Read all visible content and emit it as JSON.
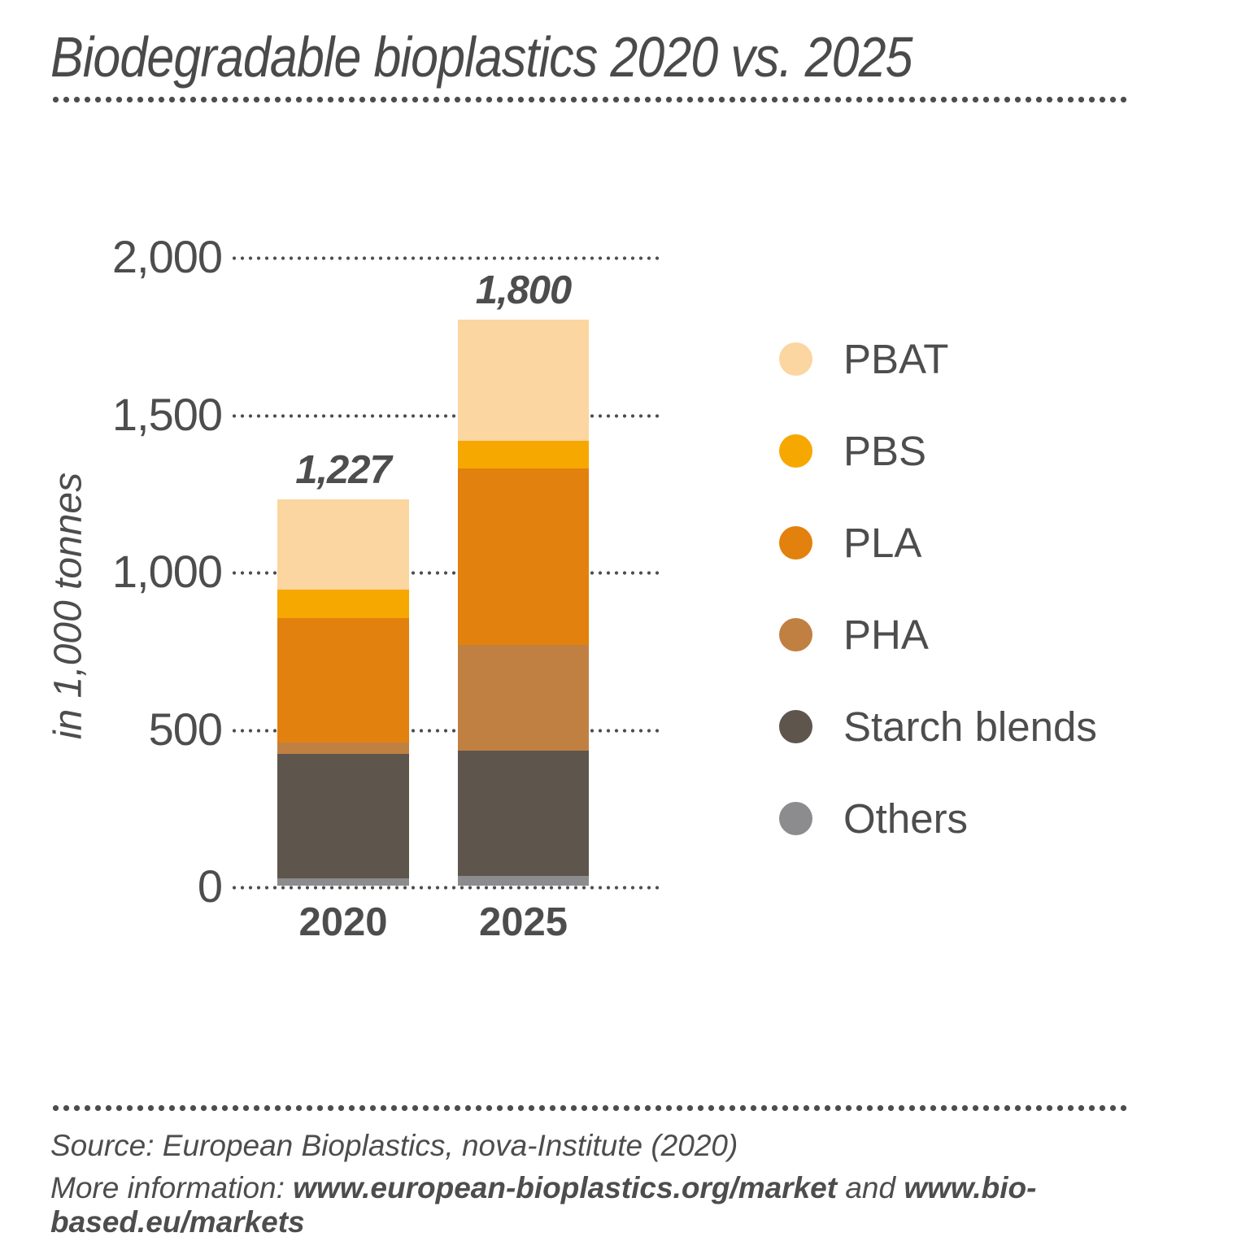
{
  "chart_data": {
    "type": "bar",
    "stacked": true,
    "title": "Biodegradable bioplastics 2020 vs. 2025",
    "ylabel": "in 1,000 tonnes",
    "ylim": [
      0,
      2000
    ],
    "grid": "dotted-horizontal",
    "legend_position": "right",
    "yticks": [
      {
        "v": 0,
        "label": "0"
      },
      {
        "v": 500,
        "label": "500"
      },
      {
        "v": 1000,
        "label": "1,000"
      },
      {
        "v": 1500,
        "label": "1,500"
      },
      {
        "v": 2000,
        "label": "2,000"
      }
    ],
    "categories": [
      {
        "label": "2020",
        "total": 1227,
        "total_label": "1,227"
      },
      {
        "label": "2025",
        "total": 1800,
        "total_label": "1,800"
      }
    ],
    "series": [
      {
        "name": "Others",
        "color": "#8c8c8e",
        "values": [
          24,
          30
        ]
      },
      {
        "name": "Starch blends",
        "color": "#5e554c",
        "values": [
          394,
          400
        ]
      },
      {
        "name": "PHA",
        "color": "#c08042",
        "values": [
          36,
          335
        ]
      },
      {
        "name": "PLA",
        "color": "#e2810d",
        "values": [
          397,
          560
        ]
      },
      {
        "name": "PBS",
        "color": "#f6a800",
        "values": [
          91,
          90
        ]
      },
      {
        "name": "PBAT",
        "color": "#fbd6a0",
        "values": [
          285,
          385
        ]
      }
    ]
  },
  "footer": {
    "source": "Source: European Bioplastics, nova-Institute (2020)",
    "more_info": {
      "prefix": "More information: ",
      "link1": "www.european-bioplastics.org/market",
      "and": " and ",
      "link2": "www.bio-based.eu/markets"
    }
  }
}
